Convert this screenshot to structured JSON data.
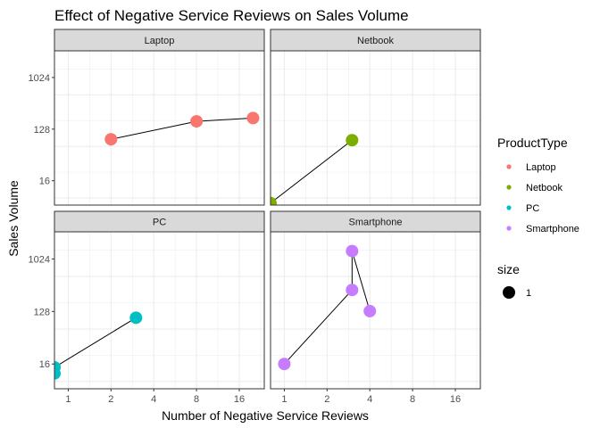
{
  "chart_data": {
    "type": "scatter",
    "title": "Effect of Negative Service Reviews on Sales Volume",
    "xlabel": "Number of Negative Service Reviews",
    "ylabel": "Sales Volume",
    "x_scale": "log2",
    "y_scale": "log2",
    "xlim": [
      0.8,
      24
    ],
    "ylim": [
      6,
      3000
    ],
    "x_ticks": [
      1,
      2,
      4,
      8,
      16
    ],
    "x_tick_labels": [
      "1",
      "2",
      "4",
      "8",
      "16"
    ],
    "y_ticks": [
      16,
      128,
      1024
    ],
    "y_tick_labels": [
      "16",
      "128",
      "1024"
    ],
    "grid": true,
    "facets": [
      {
        "name": "Laptop",
        "color": "#F8766D",
        "points": [
          {
            "x": 2,
            "y": 85
          },
          {
            "x": 8,
            "y": 175
          },
          {
            "x": 20,
            "y": 200
          }
        ]
      },
      {
        "name": "Netbook",
        "color": "#7CAE00",
        "points": [
          {
            "x": 0.8,
            "y": 6.5
          },
          {
            "x": 3,
            "y": 82
          }
        ]
      },
      {
        "name": "PC",
        "color": "#00BFC4",
        "points": [
          {
            "x": 0.8,
            "y": 11
          },
          {
            "x": 0.8,
            "y": 14
          },
          {
            "x": 3,
            "y": 100
          }
        ]
      },
      {
        "name": "Smartphone",
        "color": "#C77CFF",
        "points": [
          {
            "x": 1,
            "y": 16
          },
          {
            "x": 3,
            "y": 300
          },
          {
            "x": 3,
            "y": 1400
          },
          {
            "x": 4,
            "y": 130
          }
        ]
      }
    ],
    "legend": {
      "position": "right",
      "color_title": "ProductType",
      "color_entries": [
        "Laptop",
        "Netbook",
        "PC",
        "Smartphone"
      ],
      "size_title": "size",
      "size_entries": [
        "1"
      ]
    }
  }
}
